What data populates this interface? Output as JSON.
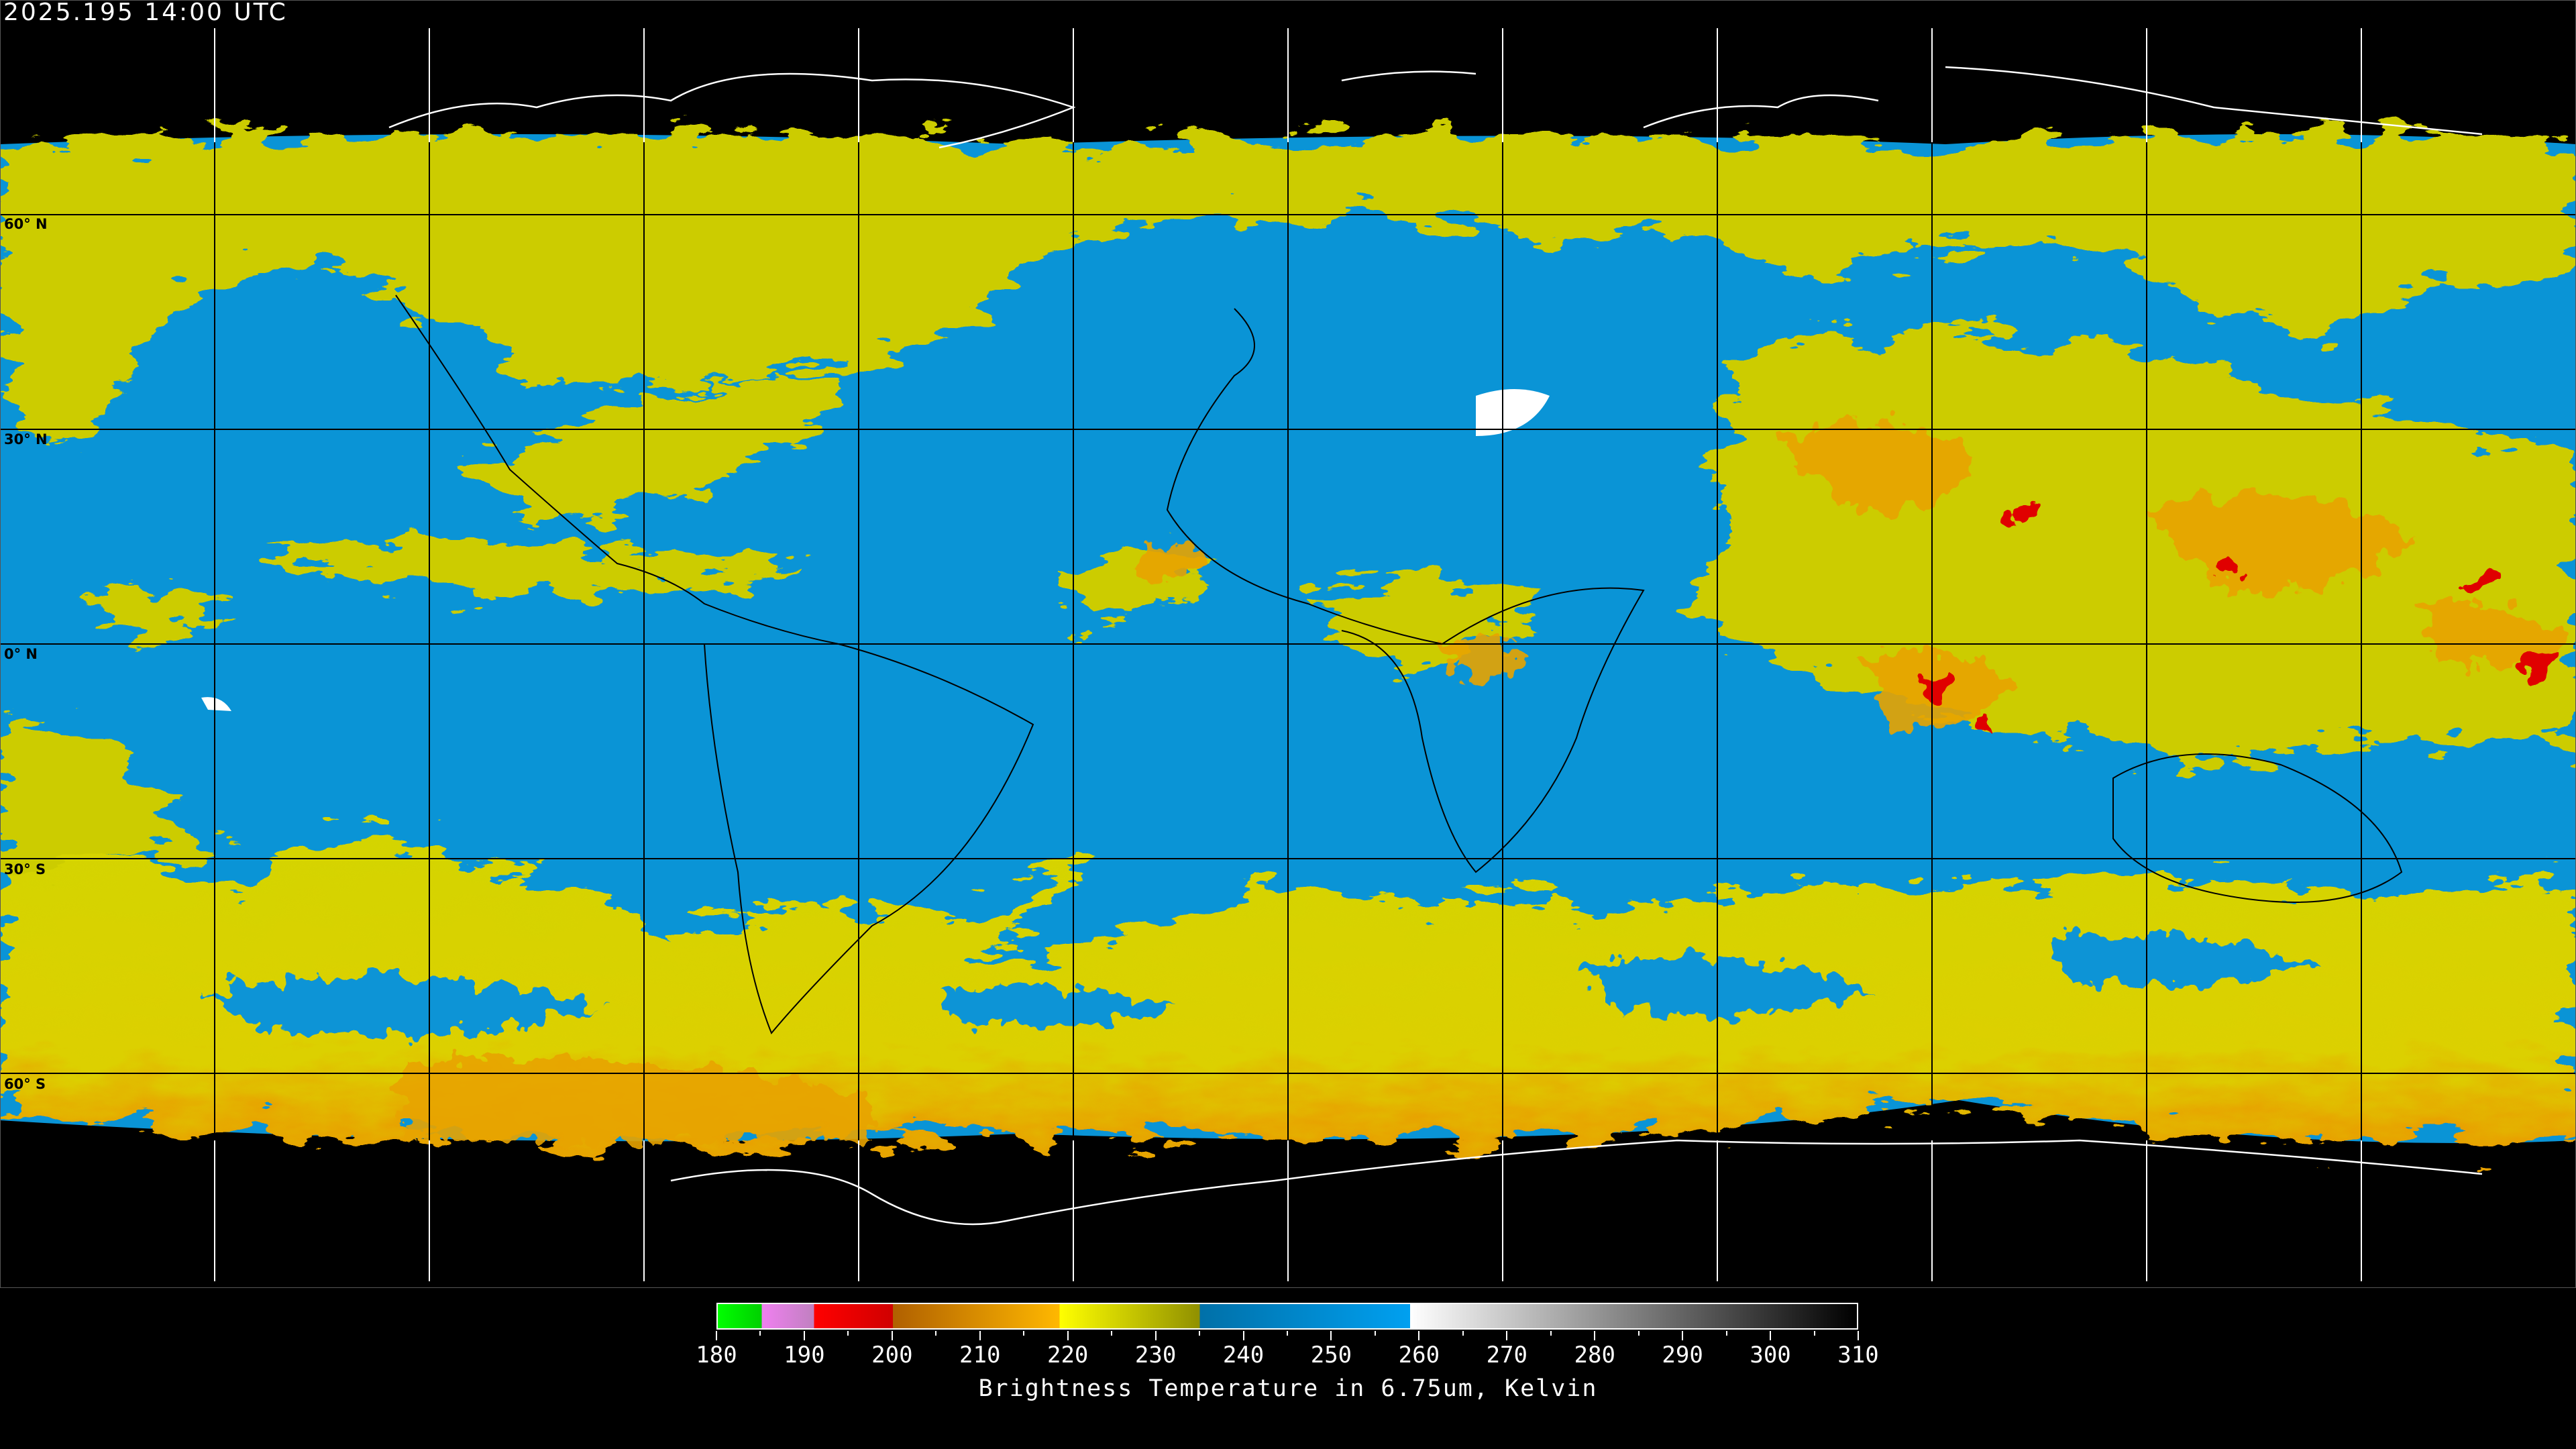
{
  "timestamp": "2025.195 14:00 UTC",
  "map": {
    "projection": "equirectangular",
    "gridline_spacing_deg": 30,
    "lat_labels": [
      "60° N",
      "30° N",
      "0° N",
      "30° S",
      "60° S"
    ],
    "colors": {
      "background": "#000000",
      "clear_sky": "#0a94d6",
      "moist": "#d4d400",
      "cold_cloud": "#e6a000",
      "deep_convection": "#e00000",
      "coastline": "#000000",
      "polar_coastline": "#ffffff"
    }
  },
  "colorbar": {
    "min": 180,
    "max": 310,
    "title": "Brightness Temperature in 6.75um, Kelvin",
    "tick_labels": [
      "180",
      "190",
      "200",
      "210",
      "220",
      "230",
      "240",
      "250",
      "260",
      "270",
      "280",
      "290",
      "300",
      "310"
    ],
    "segments": [
      {
        "from": 180,
        "to": 185,
        "colors": [
          "#00ff00",
          "#00d000"
        ]
      },
      {
        "from": 185,
        "to": 191,
        "colors": [
          "#f080f0",
          "#c080c0"
        ]
      },
      {
        "from": 191,
        "to": 200,
        "colors": [
          "#ff0000",
          "#d00000"
        ]
      },
      {
        "from": 200,
        "to": 219,
        "colors": [
          "#b06000",
          "#ffb800"
        ]
      },
      {
        "from": 219,
        "to": 235,
        "colors": [
          "#ffff00",
          "#909000"
        ]
      },
      {
        "from": 235,
        "to": 259,
        "colors": [
          "#0070a8",
          "#00a0f0"
        ]
      },
      {
        "from": 259,
        "to": 310,
        "colors": [
          "#ffffff",
          "#000000"
        ]
      }
    ]
  }
}
